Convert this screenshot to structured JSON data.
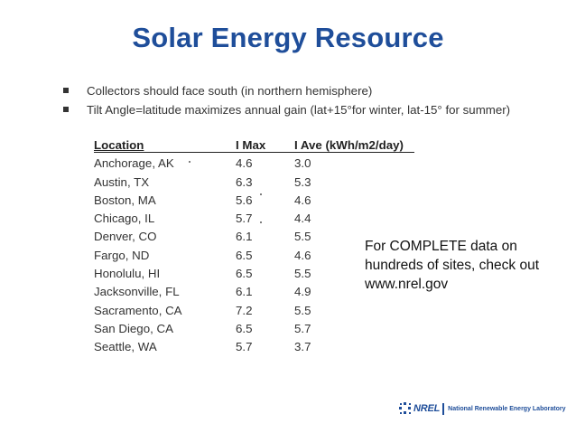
{
  "slide": {
    "title": "Solar Energy Resource",
    "bullets": [
      "Collectors should face south (in northern hemisphere)",
      "Tilt Angle=latitude maximizes annual gain (lat+15°for winter, lat-15° for summer)"
    ],
    "table": {
      "headers": [
        "Location",
        "I Max",
        "I Ave (kWh/m2/day)"
      ],
      "rows": [
        [
          "Anchorage, AK",
          "4.6",
          "3.0"
        ],
        [
          "Austin, TX",
          "6.3",
          "5.3"
        ],
        [
          "Boston, MA",
          "5.6",
          "4.6"
        ],
        [
          "Chicago, IL",
          "5.7",
          "4.4"
        ],
        [
          "Denver, CO",
          "6.1",
          "5.5"
        ],
        [
          "Fargo, ND",
          "6.5",
          "4.6"
        ],
        [
          "Honolulu, HI",
          "6.5",
          "5.5"
        ],
        [
          "Jacksonville, FL",
          "6.1",
          "4.9"
        ],
        [
          "Sacramento, CA",
          "7.2",
          "5.5"
        ],
        [
          "San Diego, CA",
          "6.5",
          "5.7"
        ],
        [
          "Seattle, WA",
          "5.7",
          "3.7"
        ]
      ]
    },
    "callout": "For COMPLETE data on hundreds of sites, check out www.nrel.gov",
    "logo": {
      "name": "NREL",
      "lab": "National Renewable Energy Laboratory",
      "color": "#1f4e9a"
    }
  }
}
